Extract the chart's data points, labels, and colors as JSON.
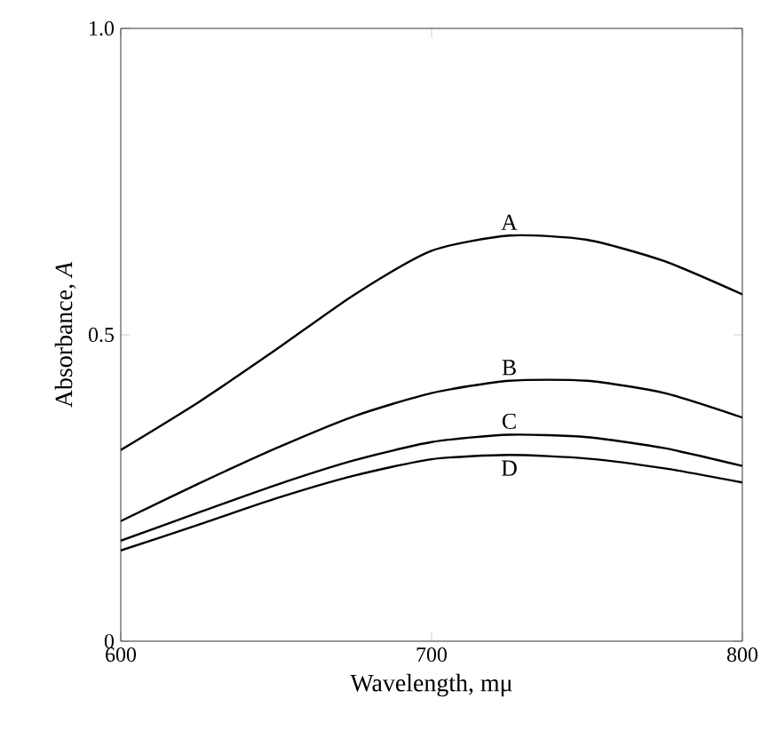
{
  "chart_data": {
    "type": "line",
    "xlabel": "Wavelength, mμ",
    "ylabel": "Absorbance, *A*",
    "x": [
      600,
      625,
      650,
      675,
      700,
      725,
      750,
      775,
      800
    ],
    "series": [
      {
        "name": "A",
        "color": "#000000",
        "values": [
          0.312,
          0.39,
          0.476,
          0.565,
          0.637,
          0.662,
          0.655,
          0.62,
          0.566
        ]
      },
      {
        "name": "B",
        "color": "#000000",
        "values": [
          0.196,
          0.257,
          0.315,
          0.367,
          0.405,
          0.425,
          0.425,
          0.405,
          0.365
        ]
      },
      {
        "name": "C",
        "color": "#000000",
        "values": [
          0.164,
          0.21,
          0.255,
          0.295,
          0.325,
          0.337,
          0.333,
          0.315,
          0.286
        ]
      },
      {
        "name": "D",
        "color": "#000000",
        "values": [
          0.148,
          0.19,
          0.233,
          0.27,
          0.297,
          0.304,
          0.298,
          0.282,
          0.259
        ]
      }
    ],
    "xlim": [
      600,
      800
    ],
    "ylim": [
      0,
      1
    ],
    "xticks": [
      600,
      700,
      800
    ],
    "yticks": [
      0,
      0.5,
      {
        "value": 1,
        "label": "1.0"
      }
    ],
    "marker": "none",
    "line_style": "solid",
    "grid": false,
    "legend": false
  }
}
